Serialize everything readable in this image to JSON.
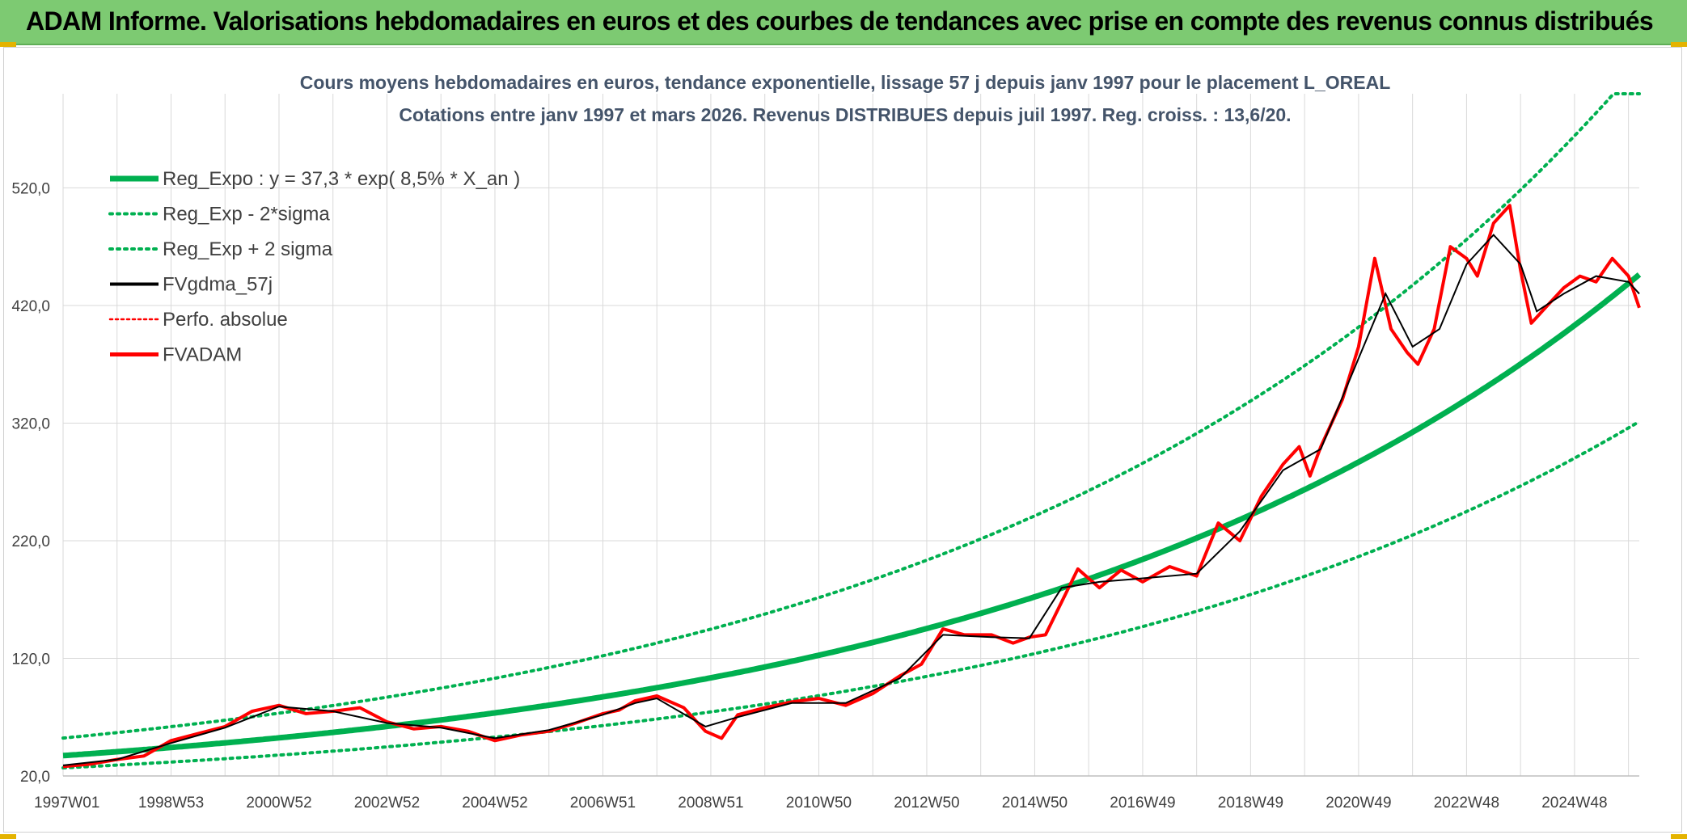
{
  "banner": {
    "title": "ADAM Informe. Valorisations hebdomadaires en euros et des courbes de tendances avec prise en compte des revenus connus distribués"
  },
  "colors": {
    "banner_bg": "#7dca72",
    "reg_green": "#00b050",
    "price_red": "#ff0000",
    "mean_black": "#000000",
    "gridline": "#d9d9d9"
  },
  "chart_data": {
    "type": "line",
    "title": "Cours moyens hebdomadaires en euros, tendance exponentielle, lissage 57 j depuis janv 1997 pour le placement L_OREAL",
    "subtitle": "Cotations entre janv 1997 et mars 2026. Revenus DISTRIBUES depuis juil 1997. Reg. croiss. : 13,6/20.",
    "xlabel": "",
    "ylabel": "",
    "x_range": [
      1997.0,
      2026.2
    ],
    "ylim": [
      20,
      600
    ],
    "y_ticks": [
      20,
      120,
      220,
      320,
      420,
      520
    ],
    "y_tick_labels": [
      "20,0",
      "120,0",
      "220,0",
      "320,0",
      "420,0",
      "520,0"
    ],
    "x_ticks": [
      1997.0,
      1999.0,
      2001.0,
      2003.0,
      2005.0,
      2007.0,
      2009.0,
      2011.0,
      2013.0,
      2015.0,
      2017.0,
      2019.0,
      2021.0,
      2023.0,
      2025.0
    ],
    "x_tick_labels": [
      "1997W01",
      "1998W53",
      "2000W52",
      "2002W52",
      "2004W52",
      "2006W51",
      "2008W51",
      "2010W50",
      "2012W50",
      "2014W50",
      "2016W49",
      "2018W49",
      "2020W49",
      "2022W48",
      "2024W48"
    ],
    "grid": true,
    "legend": {
      "position": "top-left",
      "entries": [
        {
          "label": "Reg_Expo : y = 37,3 * exp( 8,5% *  X_an )",
          "style": "thick-green"
        },
        {
          "label": "Reg_Exp - 2*sigma",
          "style": "dotted-green"
        },
        {
          "label": "Reg_Exp + 2 sigma",
          "style": "dotted-green"
        },
        {
          "label": "FVgdma_57j",
          "style": "black"
        },
        {
          "label": "Perfo. absolue",
          "style": "dotted-red"
        },
        {
          "label": "FVADAM",
          "style": "thick-red"
        }
      ]
    },
    "regression": {
      "name": "Reg_Expo",
      "a": 37.3,
      "rate": 0.085,
      "start_year": 1997.0,
      "lower_factor": 0.72,
      "upper_factor": 1.4,
      "cap": 600
    },
    "series": [
      {
        "name": "FVADAM",
        "x": [
          1997.0,
          1997.5,
          1998.0,
          1998.5,
          1999.0,
          1999.5,
          2000.0,
          2000.5,
          2001.0,
          2001.5,
          2002.0,
          2002.5,
          2003.0,
          2003.5,
          2004.0,
          2004.5,
          2005.0,
          2005.5,
          2006.0,
          2006.5,
          2007.0,
          2007.3,
          2007.6,
          2008.0,
          2008.5,
          2008.9,
          2009.2,
          2009.5,
          2010.0,
          2010.5,
          2011.0,
          2011.5,
          2012.0,
          2012.5,
          2012.9,
          2013.3,
          2013.7,
          2014.2,
          2014.6,
          2014.9,
          2015.2,
          2015.5,
          2015.8,
          2016.2,
          2016.6,
          2017.0,
          2017.5,
          2018.0,
          2018.4,
          2018.8,
          2019.2,
          2019.6,
          2019.9,
          2020.1,
          2020.3,
          2020.7,
          2021.0,
          2021.3,
          2021.6,
          2021.9,
          2022.1,
          2022.4,
          2022.7,
          2023.0,
          2023.2,
          2023.5,
          2023.8,
          2024.0,
          2024.2,
          2024.5,
          2024.8,
          2025.1,
          2025.4,
          2025.7,
          2026.0,
          2026.2
        ],
        "values": [
          28,
          30,
          34,
          37,
          50,
          56,
          62,
          75,
          80,
          73,
          75,
          78,
          66,
          60,
          62,
          58,
          50,
          55,
          58,
          65,
          73,
          76,
          84,
          88,
          78,
          58,
          52,
          72,
          78,
          83,
          86,
          80,
          90,
          105,
          115,
          145,
          140,
          140,
          133,
          138,
          140,
          168,
          196,
          180,
          195,
          185,
          198,
          190,
          235,
          220,
          258,
          285,
          300,
          275,
          300,
          340,
          385,
          460,
          400,
          380,
          370,
          400,
          470,
          460,
          445,
          490,
          505,
          450,
          405,
          420,
          435,
          445,
          440,
          460,
          445,
          418
        ]
      },
      {
        "name": "FVgdma_57j",
        "x": [
          1997.0,
          1998.0,
          1999.0,
          2000.0,
          2001.0,
          2002.0,
          2003.0,
          2004.0,
          2005.0,
          2006.0,
          2007.0,
          2007.6,
          2008.0,
          2008.9,
          2009.5,
          2010.5,
          2011.5,
          2012.5,
          2013.3,
          2014.2,
          2014.9,
          2015.5,
          2016.2,
          2017.0,
          2018.0,
          2018.8,
          2019.6,
          2020.3,
          2021.0,
          2021.5,
          2022.0,
          2022.5,
          2023.0,
          2023.5,
          2024.0,
          2024.3,
          2024.8,
          2025.4,
          2026.0,
          2026.2
        ],
        "values": [
          29,
          34,
          48,
          61,
          79,
          75,
          65,
          61,
          52,
          59,
          72,
          82,
          86,
          62,
          70,
          82,
          82,
          103,
          140,
          138,
          137,
          180,
          185,
          188,
          192,
          228,
          280,
          298,
          375,
          430,
          385,
          400,
          455,
          480,
          455,
          415,
          430,
          445,
          440,
          430
        ]
      }
    ]
  }
}
